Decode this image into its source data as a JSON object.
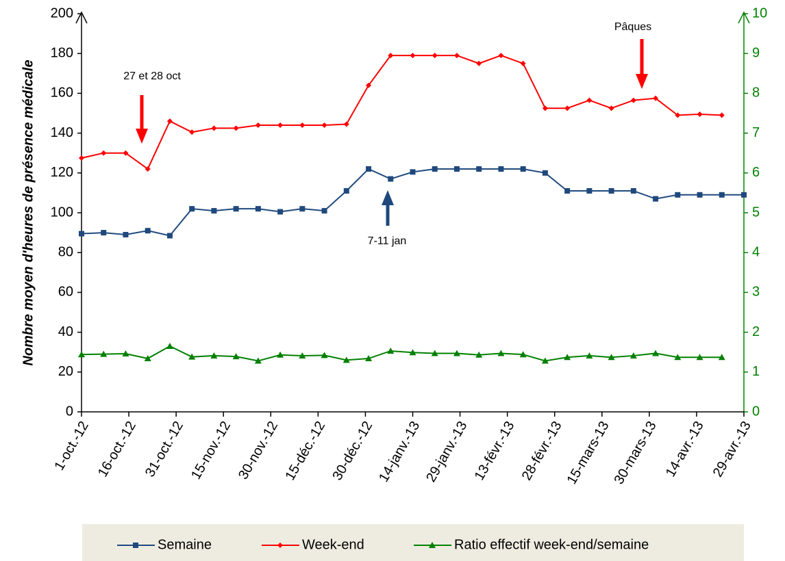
{
  "chart_data": {
    "type": "line",
    "y_axis_label": "Nombre moyen d'heures de présence médicale",
    "x": [
      "2012-10-01",
      "2012-10-08",
      "2012-10-15",
      "2012-10-22",
      "2012-10-29",
      "2012-11-05",
      "2012-11-12",
      "2012-11-19",
      "2012-11-26",
      "2012-12-03",
      "2012-12-10",
      "2012-12-17",
      "2012-12-24",
      "2012-12-31",
      "2013-01-07",
      "2013-01-14",
      "2013-01-21",
      "2013-01-28",
      "2013-02-04",
      "2013-02-11",
      "2013-02-18",
      "2013-02-25",
      "2013-03-04",
      "2013-03-11",
      "2013-03-18",
      "2013-03-25",
      "2013-04-01",
      "2013-04-08",
      "2013-04-15",
      "2013-04-22",
      "2013-04-29"
    ],
    "xlim": [
      "2012-10-01",
      "2013-04-29"
    ],
    "xticks": [
      {
        "value": "2012-10-01",
        "label": "1-oct.-12"
      },
      {
        "value": "2012-10-16",
        "label": "16-oct.-12"
      },
      {
        "value": "2012-10-31",
        "label": "31-oct.-12"
      },
      {
        "value": "2012-11-15",
        "label": "15-nov.-12"
      },
      {
        "value": "2012-11-30",
        "label": "30-nov.-12"
      },
      {
        "value": "2012-12-15",
        "label": "15-déc.-12"
      },
      {
        "value": "2012-12-30",
        "label": "30-déc.-12"
      },
      {
        "value": "2013-01-14",
        "label": "14-janv.-13"
      },
      {
        "value": "2013-01-29",
        "label": "29-janv.-13"
      },
      {
        "value": "2013-02-13",
        "label": "13-févr.-13"
      },
      {
        "value": "2013-02-28",
        "label": "28-févr.-13"
      },
      {
        "value": "2013-03-15",
        "label": "15-mars-13"
      },
      {
        "value": "2013-03-30",
        "label": "30-mars-13"
      },
      {
        "value": "2013-04-14",
        "label": "14-avr.-13"
      },
      {
        "value": "2013-04-29",
        "label": "29-avr.-13"
      }
    ],
    "ylim": [
      0,
      200
    ],
    "yticks": [
      0,
      20,
      40,
      60,
      80,
      100,
      120,
      140,
      160,
      180,
      200
    ],
    "y2lim": [
      0,
      10
    ],
    "y2ticks": [
      0,
      1,
      2,
      3,
      4,
      5,
      6,
      7,
      8,
      9,
      10
    ],
    "legend": "bottom",
    "series": [
      {
        "name": "Semaine",
        "color": "#1f497d",
        "marker": "square",
        "values": [
          89.5,
          90,
          89,
          91,
          88.5,
          102,
          101,
          102,
          102,
          100.5,
          102,
          101,
          111,
          122,
          117,
          120.5,
          122,
          122,
          122,
          122,
          122,
          120,
          111,
          111,
          111,
          111,
          107,
          109,
          109,
          109,
          109
        ]
      },
      {
        "name": "Week-end",
        "color": "#ff0000",
        "marker": "diamond",
        "values": [
          127.5,
          130,
          130,
          122,
          146,
          140.5,
          142.5,
          142.5,
          144,
          144,
          144,
          144,
          144.5,
          164,
          179,
          179,
          179,
          179,
          175,
          179,
          175,
          152.5,
          152.5,
          156.5,
          152.5,
          156.5,
          157.5,
          149,
          149.5,
          149,
          null
        ]
      },
      {
        "name": "Ratio effectif week-end/semaine",
        "color": "#008000",
        "marker": "triangle",
        "axis": "y2",
        "values": [
          1.44,
          1.45,
          1.46,
          1.34,
          1.65,
          1.38,
          1.41,
          1.39,
          1.28,
          1.43,
          1.41,
          1.42,
          1.3,
          1.34,
          1.53,
          1.49,
          1.47,
          1.47,
          1.43,
          1.47,
          1.44,
          1.28,
          1.37,
          1.41,
          1.37,
          1.41,
          1.47,
          1.37,
          1.37,
          1.37,
          null
        ]
      }
    ],
    "annotations": [
      "27 et 28 oct",
      "Pâques",
      "7-11 jan"
    ]
  }
}
